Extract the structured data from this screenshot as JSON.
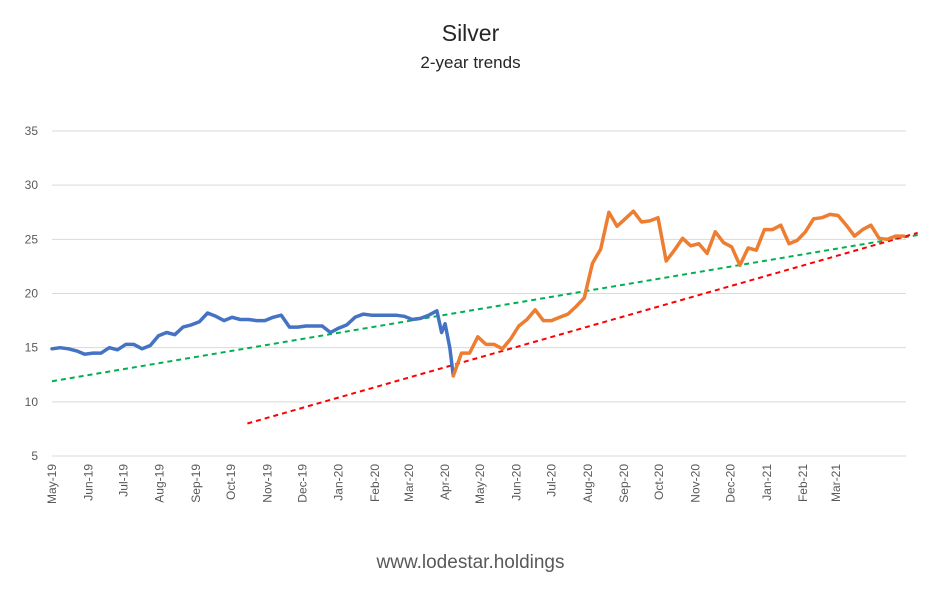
{
  "chart_data": {
    "type": "line",
    "title": "Silver",
    "subtitle": "2-year trends",
    "footer": "www.lodestar.holdings",
    "ylim": [
      5,
      35
    ],
    "yticks": [
      5,
      10,
      15,
      20,
      25,
      30,
      35
    ],
    "grid": "horizontal",
    "x_start": "2019-05-01",
    "x_end": "2021-04-30",
    "xticks": [
      {
        "date": "2019-05-01",
        "label": "May-19"
      },
      {
        "date": "2019-06-01",
        "label": "Jun-19"
      },
      {
        "date": "2019-07-01",
        "label": "Jul-19"
      },
      {
        "date": "2019-08-01",
        "label": "Aug-19"
      },
      {
        "date": "2019-09-01",
        "label": "Sep-19"
      },
      {
        "date": "2019-10-01",
        "label": "Oct-19"
      },
      {
        "date": "2019-11-01",
        "label": "Nov-19"
      },
      {
        "date": "2019-12-01",
        "label": "Dec-19"
      },
      {
        "date": "2020-01-01",
        "label": "Jan-20"
      },
      {
        "date": "2020-02-01",
        "label": "Feb-20"
      },
      {
        "date": "2020-03-01",
        "label": "Mar-20"
      },
      {
        "date": "2020-04-01",
        "label": "Apr-20"
      },
      {
        "date": "2020-05-01",
        "label": "May-20"
      },
      {
        "date": "2020-06-01",
        "label": "Jun-20"
      },
      {
        "date": "2020-07-01",
        "label": "Jul-20"
      },
      {
        "date": "2020-08-01",
        "label": "Aug-20"
      },
      {
        "date": "2020-09-01",
        "label": "Sep-20"
      },
      {
        "date": "2020-10-01",
        "label": "Oct-20"
      },
      {
        "date": "2020-11-01",
        "label": "Nov-20"
      },
      {
        "date": "2020-12-01",
        "label": "Dec-20"
      },
      {
        "date": "2021-01-01",
        "label": "Jan-21"
      },
      {
        "date": "2021-02-01",
        "label": "Feb-21"
      },
      {
        "date": "2021-03-01",
        "label": "Mar-21"
      }
    ],
    "series": [
      {
        "color": "#4472c4",
        "points": [
          [
            "2019-05-01",
            14.9
          ],
          [
            "2019-05-08",
            15.0
          ],
          [
            "2019-05-15",
            14.9
          ],
          [
            "2019-05-22",
            14.7
          ],
          [
            "2019-05-29",
            14.4
          ],
          [
            "2019-06-05",
            14.5
          ],
          [
            "2019-06-12",
            14.5
          ],
          [
            "2019-06-19",
            15.0
          ],
          [
            "2019-06-26",
            14.8
          ],
          [
            "2019-07-03",
            15.3
          ],
          [
            "2019-07-10",
            15.3
          ],
          [
            "2019-07-17",
            14.9
          ],
          [
            "2019-07-24",
            15.2
          ],
          [
            "2019-07-31",
            16.1
          ],
          [
            "2019-08-07",
            16.4
          ],
          [
            "2019-08-14",
            16.2
          ],
          [
            "2019-08-21",
            16.9
          ],
          [
            "2019-08-28",
            17.1
          ],
          [
            "2019-09-04",
            17.4
          ],
          [
            "2019-09-11",
            18.2
          ],
          [
            "2019-09-18",
            17.9
          ],
          [
            "2019-09-25",
            17.5
          ],
          [
            "2019-10-02",
            17.8
          ],
          [
            "2019-10-09",
            17.6
          ],
          [
            "2019-10-16",
            17.6
          ],
          [
            "2019-10-23",
            17.5
          ],
          [
            "2019-10-30",
            17.5
          ],
          [
            "2019-11-06",
            17.8
          ],
          [
            "2019-11-13",
            18.0
          ],
          [
            "2019-11-20",
            16.9
          ],
          [
            "2019-11-27",
            16.9
          ],
          [
            "2019-12-04",
            17.0
          ],
          [
            "2019-12-11",
            17.0
          ],
          [
            "2019-12-18",
            17.0
          ],
          [
            "2019-12-25",
            16.4
          ],
          [
            "2020-01-01",
            16.8
          ],
          [
            "2020-01-08",
            17.1
          ],
          [
            "2020-01-15",
            17.8
          ],
          [
            "2020-01-22",
            18.1
          ],
          [
            "2020-01-29",
            18.0
          ],
          [
            "2020-02-05",
            18.0
          ],
          [
            "2020-02-12",
            18.0
          ],
          [
            "2020-02-19",
            18.0
          ],
          [
            "2020-02-26",
            17.9
          ],
          [
            "2020-03-04",
            17.6
          ],
          [
            "2020-03-11",
            17.7
          ],
          [
            "2020-03-18",
            18.0
          ],
          [
            "2020-03-25",
            18.4
          ],
          [
            "2020-03-29",
            16.4
          ],
          [
            "2020-04-01",
            17.2
          ],
          [
            "2020-04-05",
            15.0
          ],
          [
            "2020-04-08",
            12.4
          ]
        ]
      },
      {
        "color": "#ed7d31",
        "points": [
          [
            "2020-04-08",
            12.4
          ],
          [
            "2020-04-15",
            14.5
          ],
          [
            "2020-04-22",
            14.5
          ],
          [
            "2020-04-29",
            16.0
          ],
          [
            "2020-05-06",
            15.3
          ],
          [
            "2020-05-13",
            15.3
          ],
          [
            "2020-05-20",
            14.9
          ],
          [
            "2020-05-27",
            15.8
          ],
          [
            "2020-06-03",
            17.0
          ],
          [
            "2020-06-10",
            17.6
          ],
          [
            "2020-06-17",
            18.5
          ],
          [
            "2020-06-24",
            17.5
          ],
          [
            "2020-07-01",
            17.5
          ],
          [
            "2020-07-08",
            17.8
          ],
          [
            "2020-07-15",
            18.1
          ],
          [
            "2020-07-22",
            18.8
          ],
          [
            "2020-07-29",
            19.6
          ],
          [
            "2020-08-05",
            22.8
          ],
          [
            "2020-08-12",
            24.1
          ],
          [
            "2020-08-19",
            27.5
          ],
          [
            "2020-08-26",
            26.2
          ],
          [
            "2020-09-02",
            26.9
          ],
          [
            "2020-09-09",
            27.6
          ],
          [
            "2020-09-16",
            26.6
          ],
          [
            "2020-09-23",
            26.7
          ],
          [
            "2020-09-30",
            27.0
          ],
          [
            "2020-10-07",
            23.0
          ],
          [
            "2020-10-14",
            24.0
          ],
          [
            "2020-10-21",
            25.1
          ],
          [
            "2020-10-28",
            24.4
          ],
          [
            "2020-11-04",
            24.6
          ],
          [
            "2020-11-11",
            23.7
          ],
          [
            "2020-11-18",
            25.7
          ],
          [
            "2020-11-25",
            24.7
          ],
          [
            "2020-12-02",
            24.3
          ],
          [
            "2020-12-09",
            22.6
          ],
          [
            "2020-12-16",
            24.2
          ],
          [
            "2020-12-23",
            24.0
          ],
          [
            "2020-12-30",
            25.9
          ],
          [
            "2021-01-06",
            25.9
          ],
          [
            "2021-01-13",
            26.3
          ],
          [
            "2021-01-20",
            24.6
          ],
          [
            "2021-01-27",
            24.9
          ],
          [
            "2021-02-03",
            25.7
          ],
          [
            "2021-02-10",
            26.9
          ],
          [
            "2021-02-17",
            27.0
          ],
          [
            "2021-02-24",
            27.3
          ],
          [
            "2021-03-03",
            27.2
          ],
          [
            "2021-03-10",
            26.3
          ],
          [
            "2021-03-17",
            25.3
          ],
          [
            "2021-03-24",
            25.9
          ],
          [
            "2021-03-31",
            26.3
          ],
          [
            "2021-04-07",
            25.1
          ],
          [
            "2021-04-14",
            25.0
          ],
          [
            "2021-04-21",
            25.3
          ],
          [
            "2021-04-28",
            25.3
          ]
        ]
      }
    ],
    "trendlines": [
      {
        "color": "#00b050",
        "style": "dashed",
        "points": [
          [
            "2019-05-01",
            11.9
          ],
          [
            "2021-05-10",
            25.4
          ]
        ]
      },
      {
        "color": "#ff0000",
        "style": "dashed",
        "points": [
          [
            "2019-10-15",
            8.0
          ],
          [
            "2021-05-10",
            25.6
          ]
        ]
      }
    ]
  }
}
